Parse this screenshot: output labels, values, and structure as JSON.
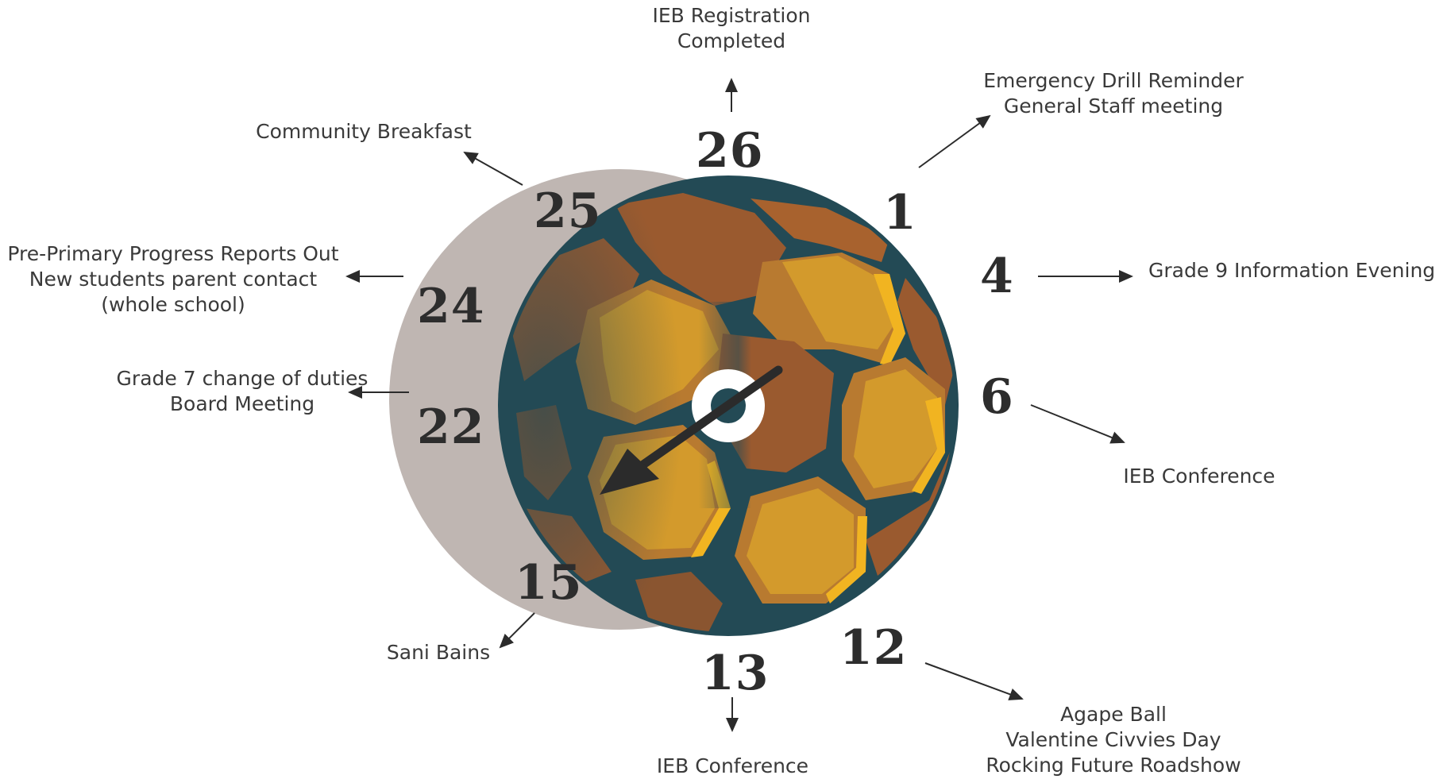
{
  "colors": {
    "ball_rim": "#234a55",
    "patch_dark": "#9a5a2f",
    "patch_mid": "#b87a30",
    "patch_light": "#d39a2c",
    "patch_highlight": "#f1b421",
    "shadow_disc": "#bfb6b2",
    "number_text": "#2d2d2d",
    "label_text": "#3a3a3a",
    "hand": "#2b2b2b"
  },
  "days": {
    "d26": {
      "number": "26",
      "lines": [
        "IEB Registration",
        "Completed"
      ]
    },
    "d1": {
      "number": "1",
      "lines": [
        "Emergency Drill Reminder",
        "General Staff meeting"
      ]
    },
    "d25": {
      "number": "25",
      "lines": [
        "Community Breakfast"
      ]
    },
    "d4": {
      "number": "4",
      "lines": [
        "Grade 9 Information Evening"
      ]
    },
    "d24": {
      "number": "24",
      "lines": [
        "Pre-Primary Progress Reports Out",
        "New students parent contact",
        "(whole school)"
      ]
    },
    "d6": {
      "number": "6",
      "lines": [
        "IEB Conference"
      ]
    },
    "d22": {
      "number": "22",
      "lines": [
        "Grade 7 change of duties",
        "Board Meeting"
      ]
    },
    "d12": {
      "number": "12",
      "lines": [
        "Agape Ball",
        "Valentine Civvies Day",
        "Rocking Future Roadshow"
      ]
    },
    "d13": {
      "number": "13",
      "lines": [
        "IEB Conference"
      ]
    },
    "d15": {
      "number": "15",
      "lines": [
        "Sani Bains"
      ]
    }
  }
}
